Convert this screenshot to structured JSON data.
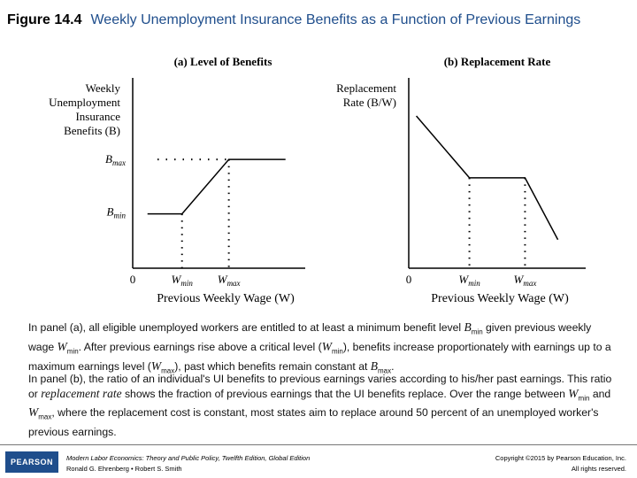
{
  "title": {
    "figure_number": "Figure 14.4",
    "text": "Weekly Unemployment Insurance Benefits as a Function of Previous Earnings"
  },
  "chart_data": [
    {
      "type": "line",
      "title": "(a) Level of Benefits",
      "ylabel": [
        "Weekly",
        "Unemployment",
        "Insurance",
        "Benefits (B)"
      ],
      "xlabel": "Previous Weekly Wage (W)",
      "origin_label": "0",
      "x_tick_labels": [
        "Wmin",
        "Wmax"
      ],
      "y_tick_labels": [
        "Bmax",
        "Bmin"
      ],
      "x": [
        0.6,
        2.0,
        3.9,
        6.2
      ],
      "y": [
        1,
        1,
        2,
        2
      ],
      "guides": "dotted"
    },
    {
      "type": "line",
      "title": "(b) Replacement Rate",
      "ylabel": [
        "Replacement",
        "Rate (B/W)"
      ],
      "xlabel": "Previous Weekly Wage (W)",
      "origin_label": "0",
      "x_tick_labels": [
        "Wmin",
        "Wmax"
      ],
      "x": [
        0.3,
        2.4,
        4.6,
        5.9
      ],
      "y": [
        3.2,
        1.9,
        1.9,
        0.6
      ],
      "guides": "dotted"
    }
  ],
  "paragraphs": {
    "p1": {
      "s1": "In panel (a), all eligible unemployed workers are entitled to at least a minimum benefit level ",
      "B": "B",
      "min": "min",
      "s2": " given previous weekly wage ",
      "W": "W",
      "s3": ". After previous earnings rise above a critical level (",
      "max": "max",
      "s4": "), benefits increase proportionately with earnings up to a maximum earnings level (",
      "s5": "), past which benefits remain constant at ",
      "s6": "."
    },
    "p2": {
      "s1": "In panel (b), the ratio of an individual's UI benefits to previous earnings varies according to his/her past earnings. This ratio or ",
      "italic": "replacement rate",
      "s2": " shows the fraction of previous earnings that the UI benefits replace. Over the range between ",
      "W": "W",
      "min": "min",
      "s3": " and ",
      "max": "max",
      "s4": ", where the replacement cost is constant, most states aim to replace around 50 percent of an unemployed worker's previous earnings."
    }
  },
  "footer": {
    "logo": "PEARSON",
    "book_title": "Modern Labor Economics: Theory and Public Policy, Twelfth Edition, Global Edition",
    "authors": "Ronald G. Ehrenberg • Robert S. Smith",
    "copyright": "Copyright ©2015 by Pearson Education, Inc.",
    "rights": "All rights reserved."
  },
  "colors": {
    "title_blue": "#1f4e8c",
    "logo_blue": "#1f4e8c"
  }
}
